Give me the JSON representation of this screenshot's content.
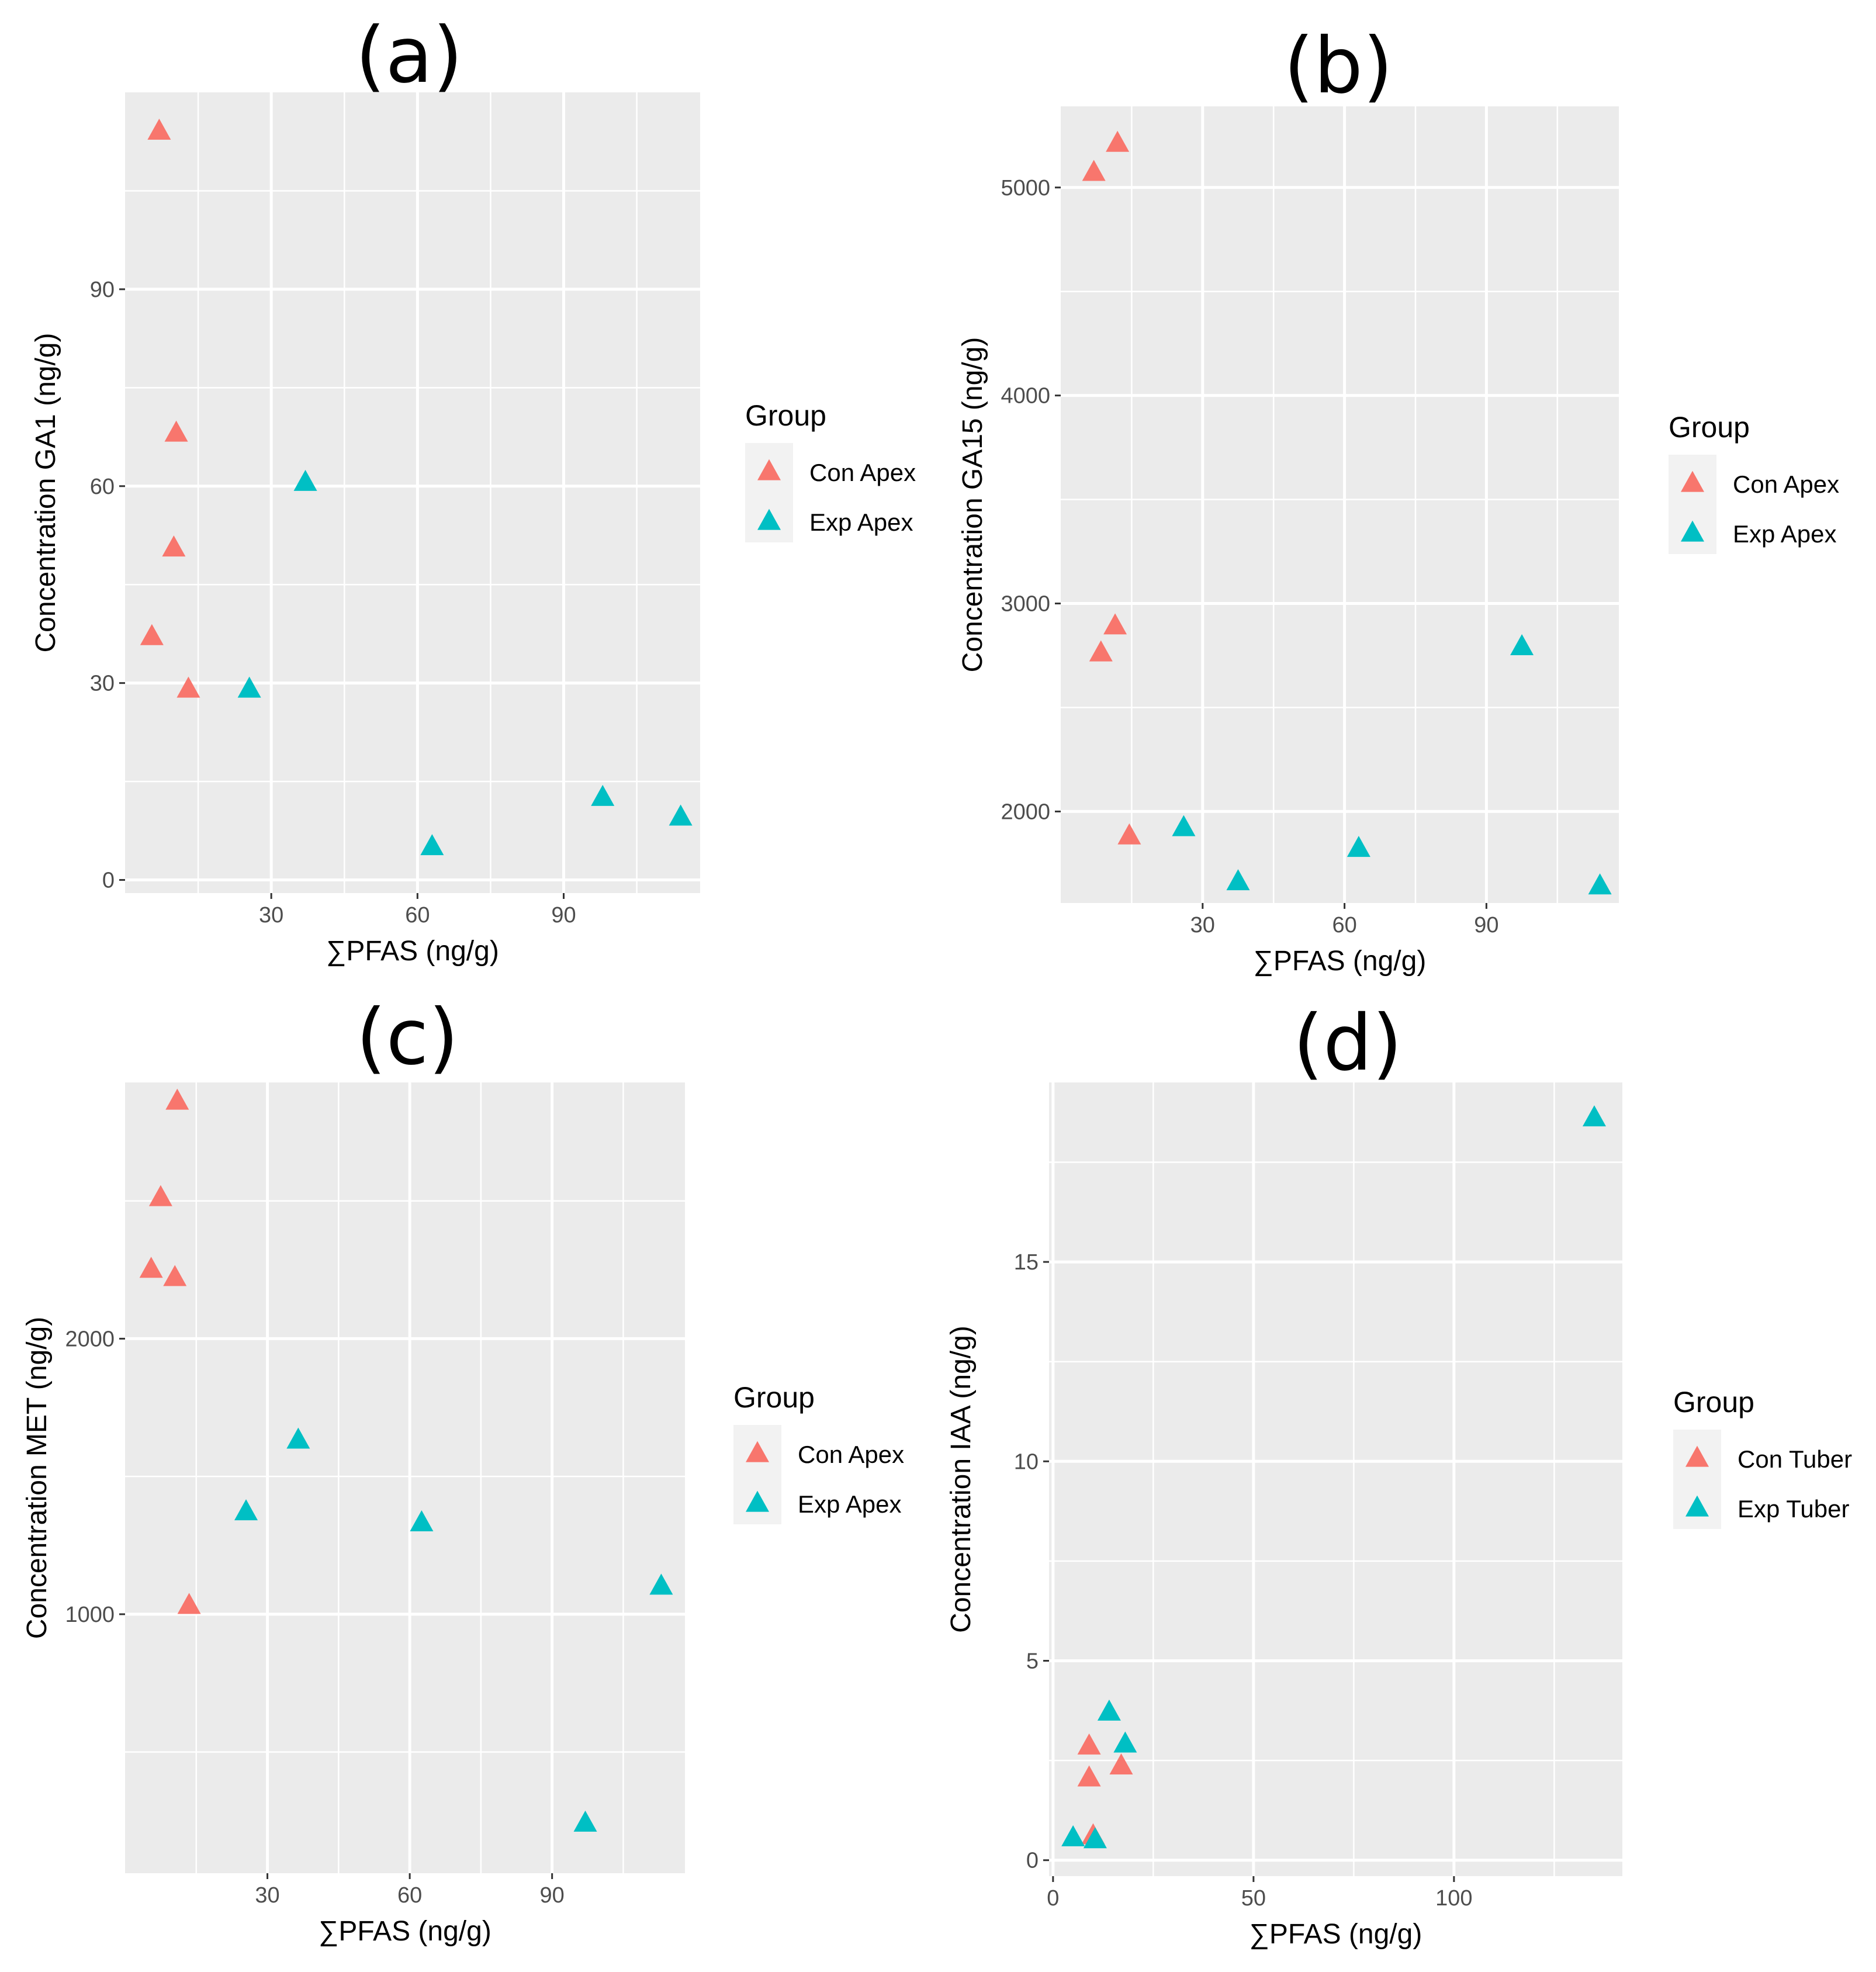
{
  "colors": {
    "con": "#F8766D",
    "exp": "#00BFC4",
    "panel_bg": "#EBEBEB",
    "grid": "#FFFFFF"
  },
  "chart_data": [
    {
      "type": "scatter",
      "panel_label": "(a)",
      "xlabel": "∑PFAS (ng/g)",
      "ylabel": "Concentration GA1 (ng/g)",
      "xlim": [
        0,
        118
      ],
      "ylim": [
        -2,
        120
      ],
      "xticks": [
        30,
        60,
        90
      ],
      "yticks": [
        0,
        30,
        60,
        90
      ],
      "xminor": [
        15,
        45,
        75,
        105
      ],
      "yminor": [
        15,
        45,
        75,
        105
      ],
      "legend": {
        "title": "Group",
        "position": "right"
      },
      "series": [
        {
          "name": "Con Apex",
          "color": "#F8766D",
          "x": [
            7,
            10.5,
            10,
            5.5,
            13
          ],
          "y": [
            114,
            68,
            50.5,
            37,
            29
          ]
        },
        {
          "name": "Exp Apex",
          "color": "#00BFC4",
          "x": [
            37,
            25.5,
            63,
            98,
            114
          ],
          "y": [
            60.5,
            29,
            5,
            12.5,
            9.5
          ]
        }
      ]
    },
    {
      "type": "scatter",
      "panel_label": "(b)",
      "xlabel": "∑PFAS (ng/g)",
      "ylabel": "Concentration GA15 (ng/g)",
      "xlim": [
        0,
        118
      ],
      "ylim": [
        1560,
        5390
      ],
      "xticks": [
        30,
        60,
        90
      ],
      "yticks": [
        2000,
        3000,
        4000,
        5000
      ],
      "xminor": [
        15,
        45,
        75,
        105
      ],
      "yminor": [
        2500,
        3500,
        4500
      ],
      "legend": {
        "title": "Group",
        "position": "right"
      },
      "series": [
        {
          "name": "Con Apex",
          "color": "#F8766D",
          "x": [
            7,
            12,
            8.5,
            11.5,
            14.5
          ],
          "y": [
            5070,
            5210,
            2760,
            2890,
            1880
          ]
        },
        {
          "name": "Exp Apex",
          "color": "#00BFC4",
          "x": [
            26,
            37.5,
            63,
            97.5,
            114
          ],
          "y": [
            1920,
            1660,
            1820,
            2790,
            1640
          ]
        }
      ]
    },
    {
      "type": "scatter",
      "panel_label": "(c)",
      "xlabel": "∑PFAS (ng/g)",
      "ylabel": "Concentration MET (ng/g)",
      "xlim": [
        0,
        118
      ],
      "ylim": [
        60,
        2930
      ],
      "xticks": [
        30,
        60,
        90
      ],
      "yticks": [
        1000,
        2000
      ],
      "xminor": [
        15,
        45,
        75,
        105
      ],
      "yminor": [
        500,
        1500,
        2500
      ],
      "legend": {
        "title": "Group",
        "position": "right"
      },
      "series": [
        {
          "name": "Con Apex",
          "color": "#F8766D",
          "x": [
            11,
            7.5,
            5.5,
            10.5,
            13.5
          ],
          "y": [
            2860,
            2510,
            2250,
            2220,
            1030
          ]
        },
        {
          "name": "Exp Apex",
          "color": "#00BFC4",
          "x": [
            36.5,
            25.5,
            62.5,
            97,
            113
          ],
          "y": [
            1630,
            1370,
            1330,
            240,
            1100
          ]
        }
      ]
    },
    {
      "type": "scatter",
      "panel_label": "(d)",
      "xlabel": "∑PFAS (ng/g)",
      "ylabel": "Concentration IAA (ng/g)",
      "xlim": [
        -1,
        142
      ],
      "ylim": [
        -0.4,
        19.5
      ],
      "xticks": [
        0,
        50,
        100
      ],
      "yticks": [
        0,
        5,
        10,
        15
      ],
      "xminor": [
        25,
        75,
        125
      ],
      "yminor": [
        2.5,
        7.5,
        12.5,
        17.5
      ],
      "legend": {
        "title": "Group",
        "position": "right"
      },
      "series": [
        {
          "name": "Con Tuber",
          "color": "#F8766D",
          "x": [
            9,
            9,
            17,
            10
          ],
          "y": [
            2.85,
            2.05,
            2.35,
            0.6
          ]
        },
        {
          "name": "Exp Tuber",
          "color": "#00BFC4",
          "x": [
            14,
            18,
            5,
            10.5,
            135
          ],
          "y": [
            3.7,
            2.9,
            0.55,
            0.5,
            18.6
          ]
        }
      ]
    }
  ]
}
